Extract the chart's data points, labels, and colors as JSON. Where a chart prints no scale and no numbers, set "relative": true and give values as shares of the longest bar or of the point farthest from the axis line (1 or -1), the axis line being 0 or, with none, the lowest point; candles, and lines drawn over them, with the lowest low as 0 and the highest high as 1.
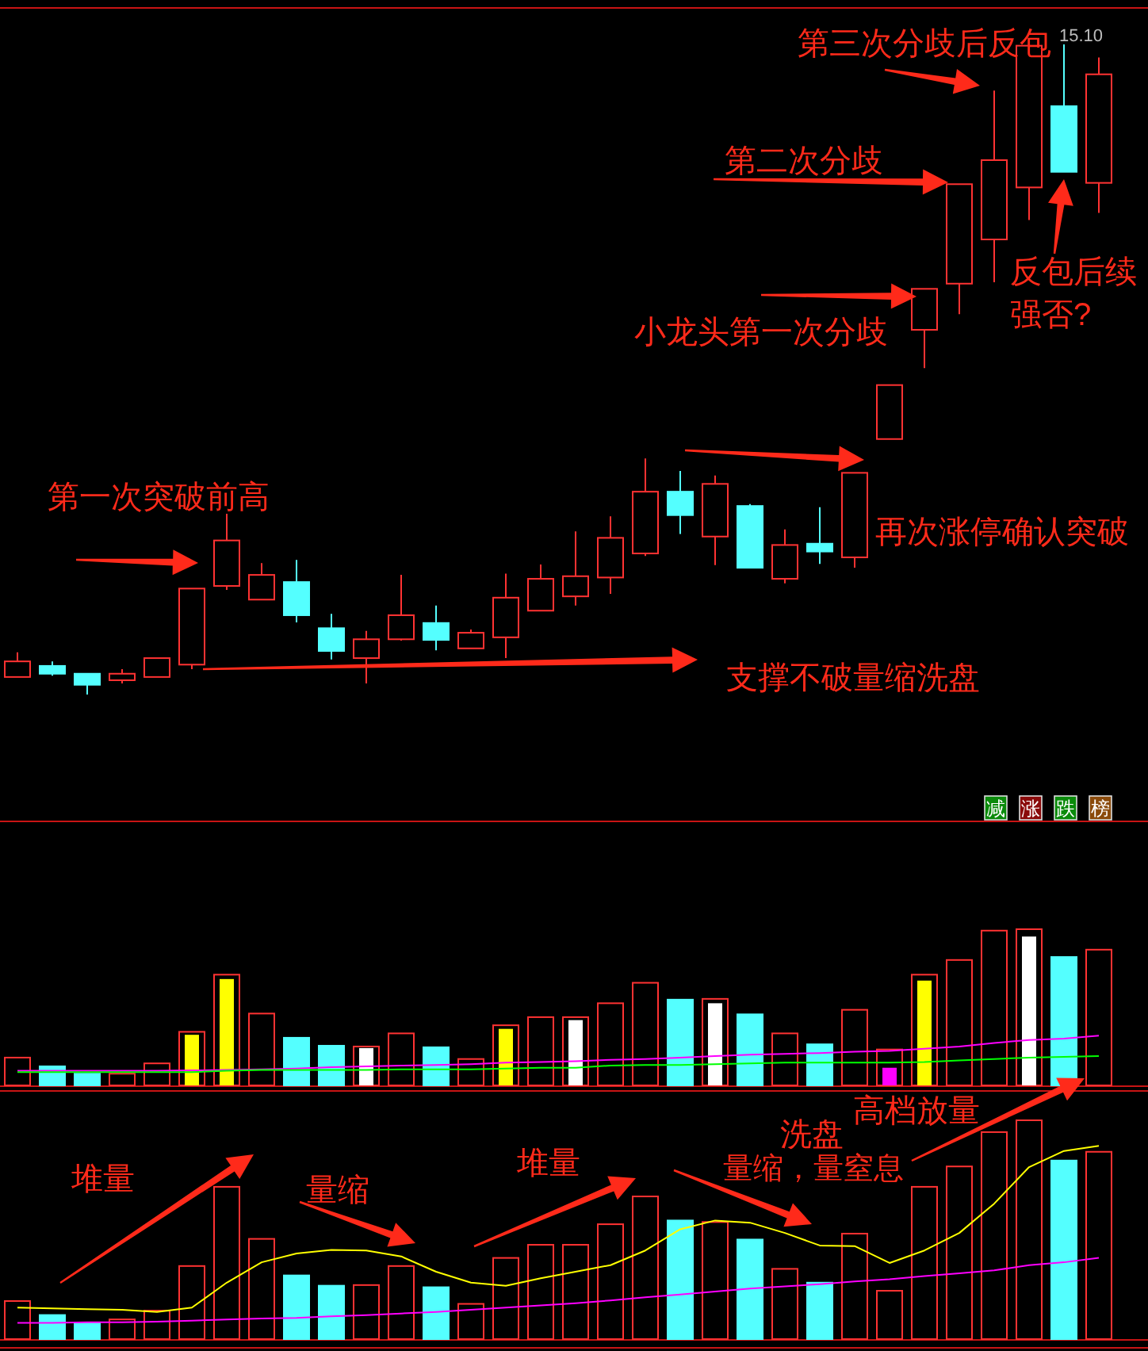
{
  "chart_data": [
    {
      "type": "candlestick",
      "relative": true,
      "categories": [
        null,
        null,
        null,
        null,
        null,
        null,
        null,
        null,
        null,
        null,
        null,
        null,
        null,
        null,
        null,
        null,
        null,
        null,
        null,
        null,
        null,
        null,
        null,
        null,
        null,
        null,
        null,
        null,
        null,
        null,
        null,
        null
      ],
      "ohlc": [
        [
          0.027,
          0.065,
          0.027,
          0.051
        ],
        [
          0.044,
          0.051,
          0.029,
          0.032
        ],
        [
          0.032,
          0.032,
          0,
          0.015
        ],
        [
          0.022,
          0.039,
          0.017,
          0.032
        ],
        [
          0.027,
          0.056,
          0.027,
          0.056
        ],
        [
          0.046,
          0.163,
          0.039,
          0.163
        ],
        [
          0.167,
          0.278,
          0.161,
          0.237
        ],
        [
          0.146,
          0.202,
          0.146,
          0.184
        ],
        [
          0.173,
          0.207,
          0.111,
          0.122
        ],
        [
          0.102,
          0.124,
          0.054,
          0.067
        ],
        [
          0.056,
          0.098,
          0.017,
          0.085
        ],
        [
          0.085,
          0.184,
          0.083,
          0.122
        ],
        [
          0.11,
          0.137,
          0.068,
          0.084
        ],
        [
          0.071,
          0.1,
          0.071,
          0.095
        ],
        [
          0.088,
          0.186,
          0.056,
          0.149
        ],
        [
          0.129,
          0.2,
          0.129,
          0.178
        ],
        [
          0.151,
          0.251,
          0.137,
          0.182
        ],
        [
          0.18,
          0.274,
          0.155,
          0.241
        ],
        [
          0.217,
          0.363,
          0.213,
          0.312
        ],
        [
          0.312,
          0.344,
          0.247,
          0.276
        ],
        [
          0.243,
          0.337,
          0.199,
          0.324
        ],
        [
          0.29,
          0.293,
          0.195,
          0.195
        ],
        [
          0.178,
          0.254,
          0.171,
          0.23
        ],
        [
          0.232,
          0.288,
          0.201,
          0.22
        ],
        [
          0.211,
          0.341,
          0.195,
          0.341
        ],
        [
          0.393,
          0.476,
          0.393,
          0.476
        ],
        [
          0.561,
          0.624,
          0.502,
          0.624
        ],
        [
          0.632,
          0.785,
          0.585,
          0.785
        ],
        [
          0.7,
          0.929,
          0.634,
          0.822
        ],
        [
          0.78,
          0.998,
          0.73,
          0.998
        ],
        [
          0.905,
          1,
          0.804,
          0.804
        ],
        [
          0.787,
          0.98,
          0.741,
          0.954
        ]
      ],
      "colors": [
        "#ff3232",
        "#54ffff",
        "#54ffff",
        "#ff3232",
        "#ff3232",
        "#ff3232",
        "#ff3232",
        "#ff3232",
        "#54ffff",
        "#54ffff",
        "#ff3232",
        "#ff3232",
        "#54ffff",
        "#ff3232",
        "#ff3232",
        "#ff3232",
        "#ff3232",
        "#ff3232",
        "#ff3232",
        "#54ffff",
        "#ff3232",
        "#54ffff",
        "#ff3232",
        "#54ffff",
        "#ff3232",
        "#ff3232",
        "#ff3232",
        "#ff3232",
        "#ff3232",
        "#ff3232",
        "#54ffff",
        "#ff3232"
      ],
      "annotations": [
        "第三次分歧后反包",
        "15.10",
        "第二次分歧",
        "小龙头第一次分歧",
        "反包后续强否?",
        "第一次突破前高",
        "再次涨停确认突破",
        "支撑不破量缩洗盘",
        "减",
        "涨",
        "跌",
        "榜"
      ]
    },
    {
      "type": "bar",
      "relative": true,
      "categories": [
        null,
        null,
        null,
        null,
        null,
        null,
        null,
        null,
        null,
        null,
        null,
        null,
        null,
        null,
        null,
        null,
        null,
        null,
        null,
        null,
        null,
        null,
        null,
        null,
        null,
        null,
        null,
        null,
        null,
        null,
        null,
        null
      ],
      "series": [
        {
          "type": "bar",
          "colors": [
            "#ff3232",
            "#54ffff",
            "#54ffff",
            "#ff3232",
            "#ff3232",
            "#ff3232",
            "#ff3232",
            "#ff3232",
            "#54ffff",
            "#54ffff",
            "#ff3232",
            "#ff3232",
            "#54ffff",
            "#ff3232",
            "#ff3232",
            "#ff3232",
            "#ff3232",
            "#ff3232",
            "#ff3232",
            "#54ffff",
            "#ff3232",
            "#54ffff",
            "#ff3232",
            "#54ffff",
            "#ff3232",
            "#ff3232",
            "#ff3232",
            "#ff3232",
            "#ff3232",
            "#ff3232",
            "#54ffff",
            "#ff3232"
          ],
          "values": [
            0.178,
            0.122,
            0.075,
            0.075,
            0.141,
            0.343,
            0.709,
            0.46,
            0.305,
            0.254,
            0.249,
            0.333,
            0.244,
            0.169,
            0.385,
            0.437,
            0.437,
            0.526,
            0.657,
            0.549,
            0.554,
            0.455,
            0.333,
            0.263,
            0.484,
            0.23,
            0.709,
            0.803,
            0.991,
            1,
            0.822,
            0.869
          ]
        },
        {
          "type": "bar",
          "colors": [
            null,
            null,
            null,
            null,
            null,
            "#ffff00",
            "#ffff00",
            null,
            null,
            null,
            "#ffffff",
            null,
            null,
            null,
            "#ffff00",
            null,
            "#ffffff",
            null,
            null,
            null,
            "#ffffff",
            null,
            null,
            null,
            null,
            "#ff00ff",
            "#ffff00",
            null,
            null,
            "#ffffff",
            null,
            null
          ],
          "values": [
            null,
            null,
            null,
            null,
            null,
            0.324,
            0.681,
            null,
            null,
            null,
            0.239,
            null,
            null,
            null,
            0.362,
            null,
            0.418,
            null,
            null,
            null,
            0.526,
            null,
            null,
            null,
            null,
            0.113,
            0.671,
            null,
            null,
            0.953,
            null,
            null
          ]
        },
        {
          "type": "line",
          "color": "#ff00ff",
          "values": [
            0.094,
            0.094,
            0.094,
            0.094,
            0.094,
            0.096,
            0.099,
            0.103,
            0.108,
            0.117,
            0.122,
            0.127,
            0.131,
            0.136,
            0.146,
            0.15,
            0.155,
            0.164,
            0.169,
            0.178,
            0.188,
            0.197,
            0.202,
            0.207,
            0.216,
            0.221,
            0.235,
            0.249,
            0.272,
            0.291,
            0.3,
            0.319
          ]
        },
        {
          "type": "line",
          "color": "#00ff00",
          "values": [
            0.085,
            0.085,
            0.085,
            0.085,
            0.085,
            0.085,
            0.094,
            0.099,
            0.099,
            0.099,
            0.099,
            0.103,
            0.103,
            0.103,
            0.108,
            0.113,
            0.113,
            0.127,
            0.131,
            0.131,
            0.136,
            0.141,
            0.146,
            0.146,
            0.146,
            0.146,
            0.15,
            0.16,
            0.169,
            0.178,
            0.183,
            0.188
          ]
        }
      ]
    },
    {
      "type": "bar",
      "relative": true,
      "categories": [
        null,
        null,
        null,
        null,
        null,
        null,
        null,
        null,
        null,
        null,
        null,
        null,
        null,
        null,
        null,
        null,
        null,
        null,
        null,
        null,
        null,
        null,
        null,
        null,
        null,
        null,
        null,
        null,
        null,
        null,
        null,
        null
      ],
      "series": [
        {
          "type": "bar",
          "colors": [
            "#ff3232",
            "#54ffff",
            "#54ffff",
            "#ff3232",
            "#ff3232",
            "#ff3232",
            "#ff3232",
            "#ff3232",
            "#54ffff",
            "#54ffff",
            "#ff3232",
            "#ff3232",
            "#54ffff",
            "#ff3232",
            "#ff3232",
            "#ff3232",
            "#ff3232",
            "#ff3232",
            "#ff3232",
            "#54ffff",
            "#ff3232",
            "#54ffff",
            "#ff3232",
            "#54ffff",
            "#ff3232",
            "#ff3232",
            "#ff3232",
            "#ff3232",
            "#ff3232",
            "#ff3232",
            "#54ffff",
            "#ff3232"
          ],
          "values": [
            0.174,
            0.11,
            0.074,
            0.09,
            0.13,
            0.334,
            0.696,
            0.458,
            0.291,
            0.244,
            0.247,
            0.334,
            0.237,
            0.161,
            0.371,
            0.431,
            0.431,
            0.525,
            0.652,
            0.542,
            0.535,
            0.455,
            0.321,
            0.258,
            0.482,
            0.221,
            0.696,
            0.789,
            0.946,
            1,
            0.816,
            0.856
          ]
        },
        {
          "type": "line",
          "color": "#ffff00",
          "values": [
            0.144,
            0.14,
            0.137,
            0.134,
            0.124,
            0.144,
            0.258,
            0.351,
            0.391,
            0.408,
            0.405,
            0.378,
            0.308,
            0.258,
            0.244,
            0.278,
            0.308,
            0.338,
            0.405,
            0.502,
            0.542,
            0.532,
            0.485,
            0.428,
            0.425,
            0.348,
            0.405,
            0.485,
            0.619,
            0.786,
            0.86,
            0.883
          ]
        },
        {
          "type": "line",
          "color": "#ff00ff",
          "values": [
            0.074,
            0.074,
            0.077,
            0.077,
            0.08,
            0.084,
            0.09,
            0.094,
            0.097,
            0.104,
            0.11,
            0.117,
            0.124,
            0.134,
            0.144,
            0.154,
            0.164,
            0.177,
            0.191,
            0.204,
            0.217,
            0.231,
            0.241,
            0.251,
            0.264,
            0.274,
            0.288,
            0.301,
            0.314,
            0.338,
            0.351,
            0.371
          ]
        }
      ],
      "annotations": [
        "堆量",
        "量缩",
        "堆量",
        "洗盘",
        "量缩，量窒息",
        "高档放量"
      ]
    }
  ]
}
